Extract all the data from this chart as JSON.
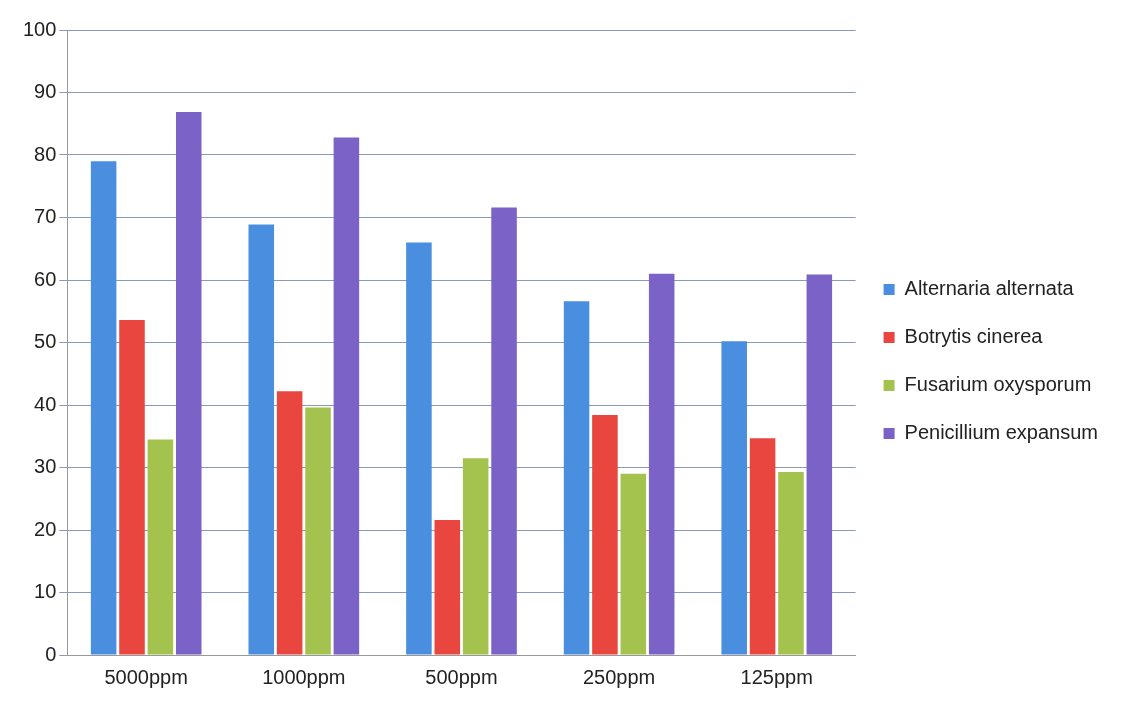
{
  "chart_data": {
    "type": "bar",
    "categories": [
      "5000ppm",
      "1000ppm",
      "500ppm",
      "250ppm",
      "125ppm"
    ],
    "series": [
      {
        "name": "Alternaria alternata",
        "color": "#4a8ee0",
        "values": [
          79,
          68.9,
          66,
          56.6,
          50.2
        ]
      },
      {
        "name": "Botrytis cinerea",
        "color": "#e8463e",
        "values": [
          53.6,
          42.2,
          21.6,
          38.4,
          34.7
        ]
      },
      {
        "name": "Fusarium oxysporum",
        "color": "#a4c24e",
        "values": [
          34.5,
          39.6,
          31.5,
          29,
          29.3
        ]
      },
      {
        "name": "Penicillium expansum",
        "color": "#7a62c6",
        "values": [
          86.9,
          82.8,
          71.6,
          61,
          60.9
        ]
      }
    ],
    "ylim": [
      0,
      100
    ],
    "yticks": [
      0,
      10,
      20,
      30,
      40,
      50,
      60,
      70,
      80,
      90,
      100
    ],
    "grid": "y",
    "legend": "right"
  }
}
